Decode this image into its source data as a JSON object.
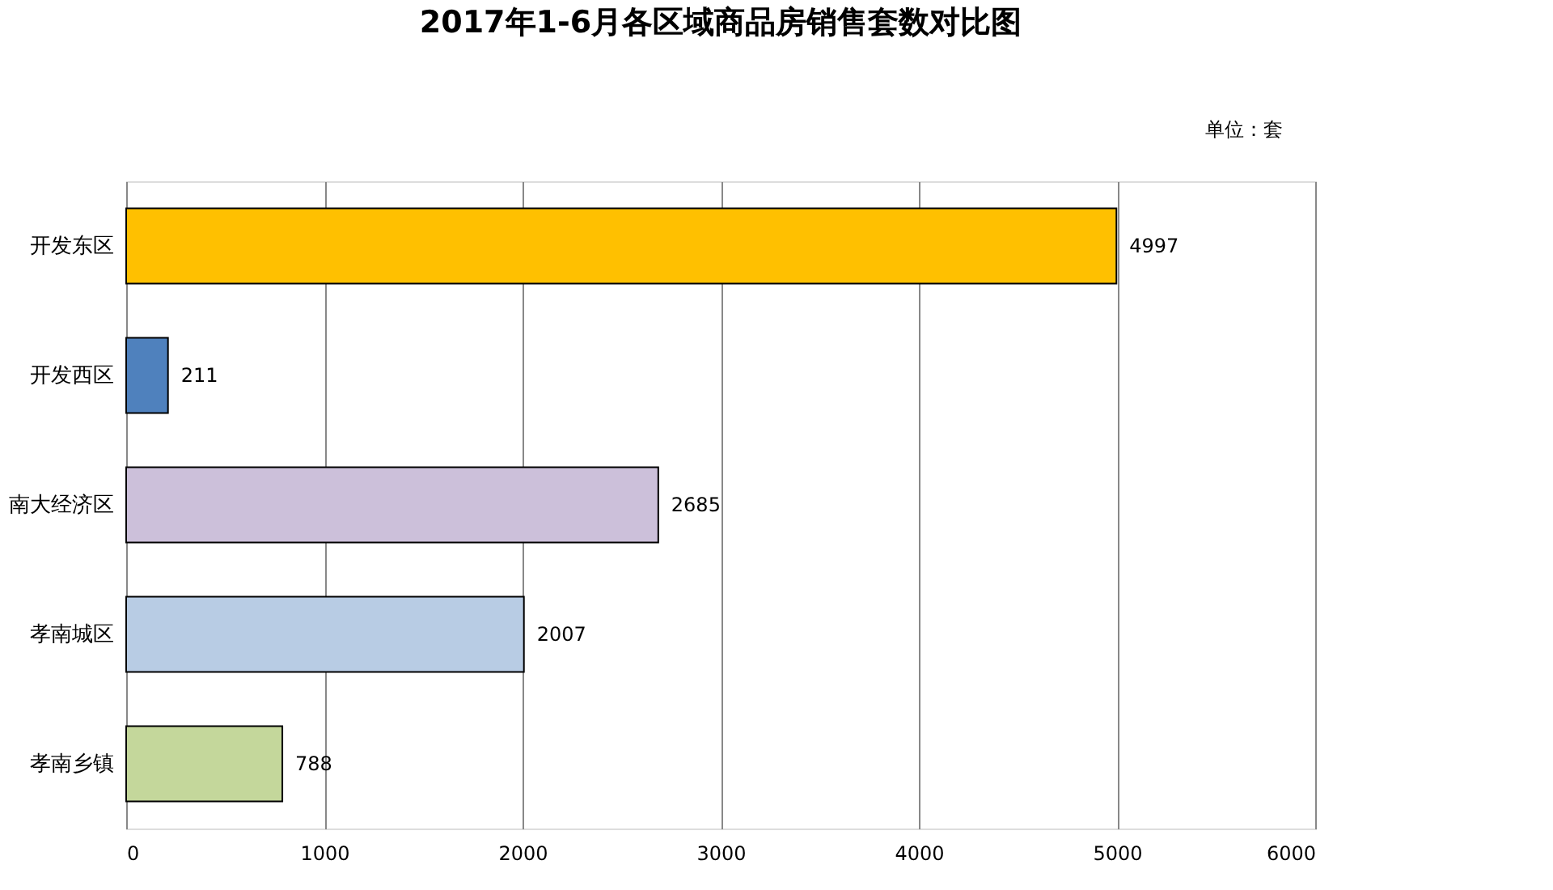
{
  "chart_data": {
    "type": "bar",
    "orientation": "horizontal",
    "title": "2017年1-6月各区域商品房销售套数对比图",
    "categories": [
      "开发东区",
      "开发西区",
      "南大经济区",
      "孝南城区",
      "孝南乡镇"
    ],
    "values": [
      4997,
      211,
      2685,
      2007,
      788
    ],
    "colors": [
      "#ffc000",
      "#4f81bd",
      "#ccc0da",
      "#b8cce4",
      "#c4d79b"
    ],
    "xlim": [
      0,
      6000
    ],
    "xticks": [
      0,
      1000,
      2000,
      3000,
      4000,
      5000,
      6000
    ],
    "grid": "x",
    "data_labels": true,
    "annotations": [
      "单位：套"
    ]
  }
}
